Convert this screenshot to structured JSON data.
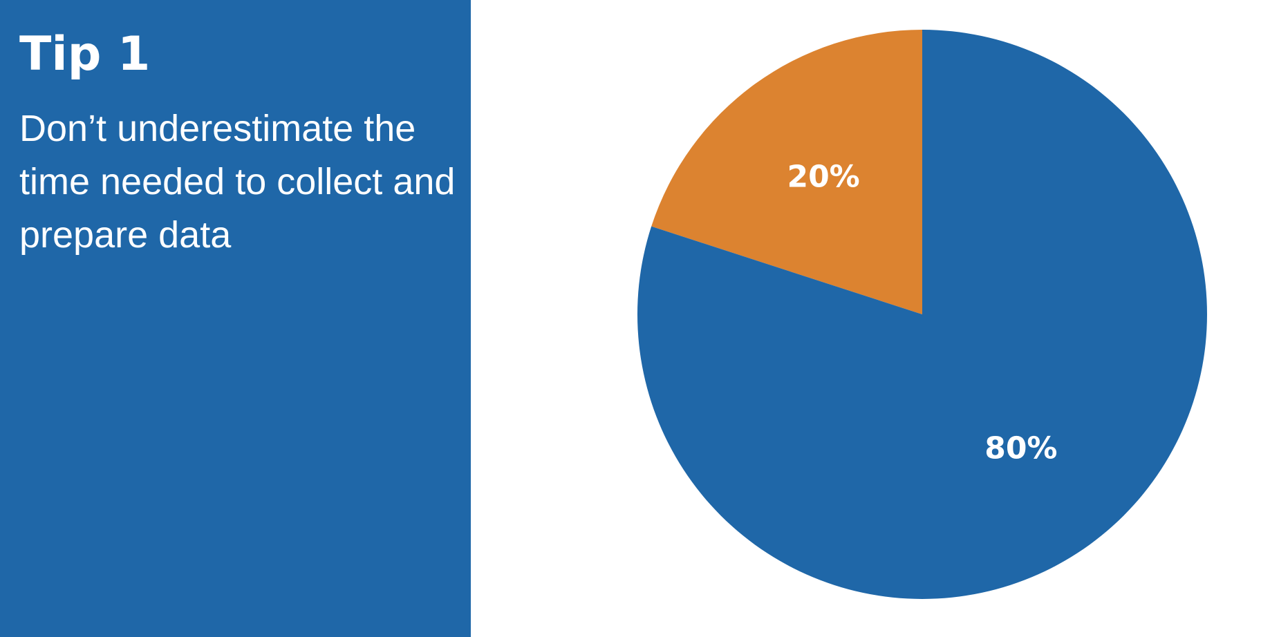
{
  "slide": {
    "title": "Tip 1",
    "body": "Don’t underestimate the time needed to collect and prepare data"
  },
  "chart_data": {
    "type": "pie",
    "title": "",
    "slices": [
      {
        "label": "20%",
        "value": 20,
        "color": "#dc8330"
      },
      {
        "label": "80%",
        "value": 80,
        "color": "#1f67a8"
      }
    ],
    "start": "12 o'clock, counter-clockwise",
    "legend": "none"
  },
  "colors": {
    "panel": "#1f67a8",
    "text": "#ffffff",
    "background": "#ffffff"
  }
}
